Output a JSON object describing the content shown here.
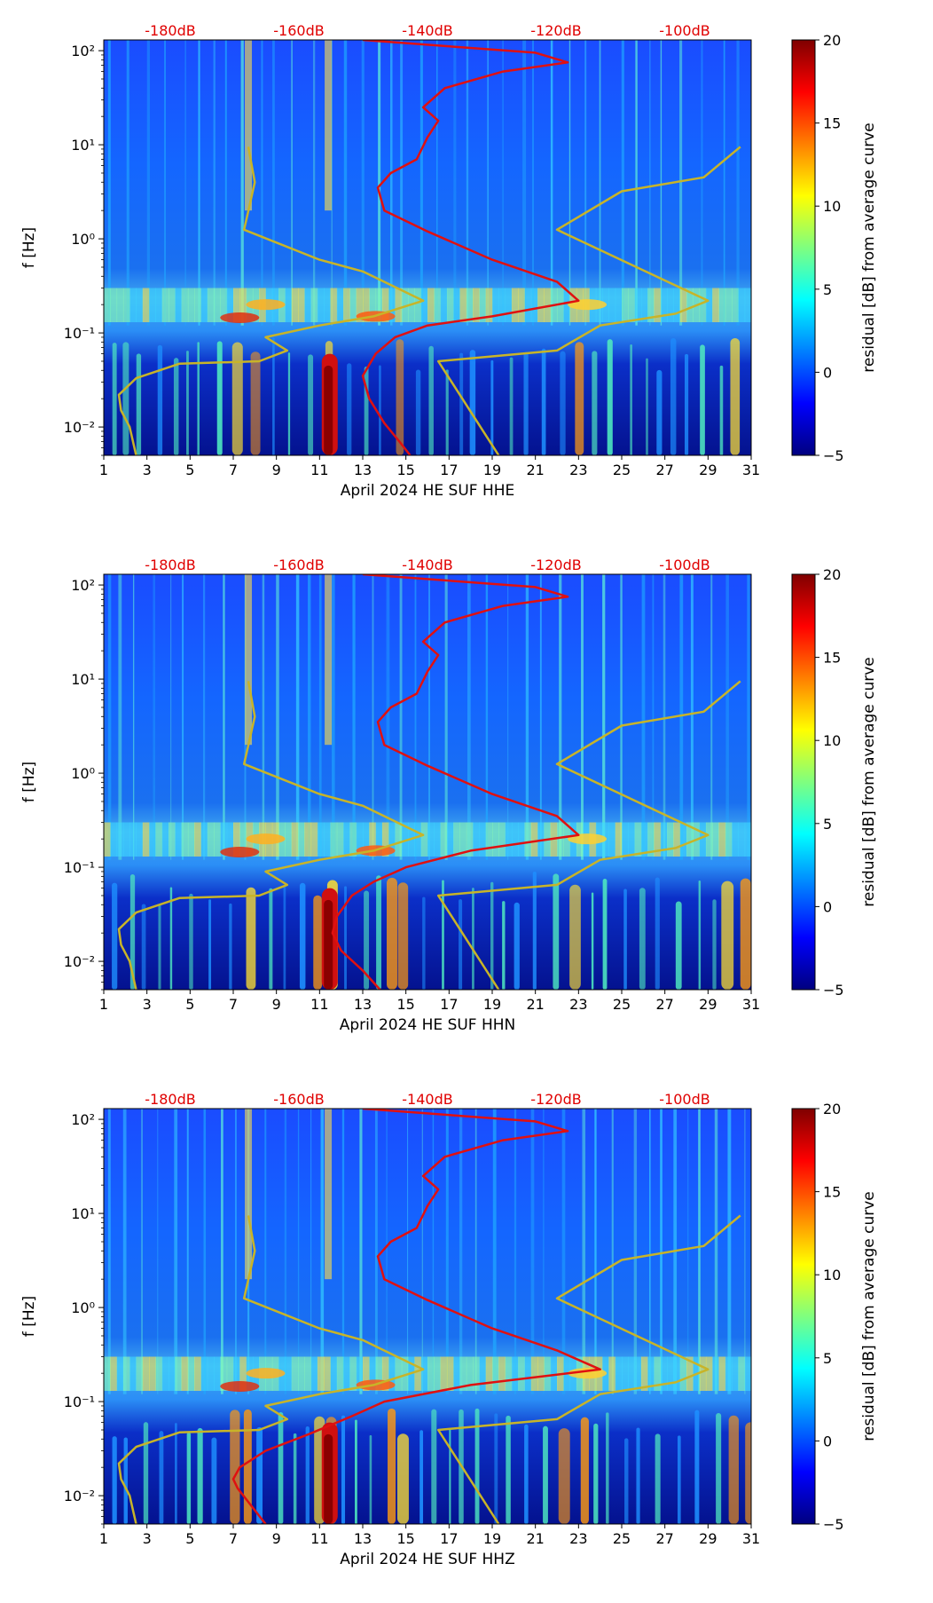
{
  "colors": {
    "peterson_curves": "#c8b428",
    "median_curve": "#e01010",
    "db_label": "#e00000",
    "colormap": [
      "#00007f",
      "#0000ff",
      "#007fff",
      "#00ffff",
      "#7fff7f",
      "#ffff00",
      "#ff7f00",
      "#ff0000",
      "#7f0000"
    ]
  },
  "chart_data": [
    {
      "type": "heatmap",
      "title": "",
      "xlabel": "April 2024 HE SUF  HHE",
      "ylabel": "f [Hz]",
      "x_ticks": [
        1,
        3,
        5,
        7,
        9,
        11,
        13,
        15,
        17,
        19,
        21,
        23,
        25,
        27,
        29,
        31
      ],
      "y_ticks": [
        {
          "value": 0.01,
          "label": "10⁻²"
        },
        {
          "value": 0.1,
          "label": "10⁻¹"
        },
        {
          "value": 1,
          "label": "10⁰"
        },
        {
          "value": 10,
          "label": "10¹"
        },
        {
          "value": 100,
          "label": "10²"
        }
      ],
      "xlim": [
        1,
        31
      ],
      "ylim": [
        0.005,
        130
      ],
      "top_axis_labels": [
        "-180dB",
        "-160dB",
        "-140dB",
        "-120dB",
        "-100dB"
      ],
      "colorbar": {
        "label": "residual [dB] from average curve",
        "range": [
          -5,
          20
        ],
        "ticks": [
          -5,
          0,
          5,
          10,
          15,
          20
        ]
      },
      "nlnm_curve": [
        [
          2.5,
          0.005
        ],
        [
          2.2,
          0.01
        ],
        [
          1.8,
          0.015
        ],
        [
          1.7,
          0.022
        ],
        [
          2.5,
          0.033
        ],
        [
          4.5,
          0.047
        ],
        [
          8.2,
          0.05
        ],
        [
          9.5,
          0.065
        ],
        [
          8.5,
          0.09
        ],
        [
          11,
          0.12
        ],
        [
          13.5,
          0.15
        ],
        [
          15.8,
          0.22
        ],
        [
          13,
          0.45
        ],
        [
          11,
          0.6
        ],
        [
          7.5,
          1.25
        ],
        [
          8,
          4
        ],
        [
          7.7,
          9.5
        ]
      ],
      "nhnm_curve": [
        [
          19.3,
          0.005
        ],
        [
          16.5,
          0.05
        ],
        [
          22,
          0.065
        ],
        [
          24,
          0.12
        ],
        [
          27.5,
          0.16
        ],
        [
          29,
          0.22
        ],
        [
          22,
          1.25
        ],
        [
          25,
          3.2
        ],
        [
          28.8,
          4.5
        ],
        [
          30.5,
          9.5
        ]
      ],
      "median_curve": [
        [
          15.2,
          0.005
        ],
        [
          14.7,
          0.007
        ],
        [
          14,
          0.011
        ],
        [
          13.3,
          0.02
        ],
        [
          13,
          0.035
        ],
        [
          13.6,
          0.06
        ],
        [
          14.5,
          0.09
        ],
        [
          16,
          0.12
        ],
        [
          19,
          0.15
        ],
        [
          23,
          0.22
        ],
        [
          22,
          0.35
        ],
        [
          19,
          0.6
        ],
        [
          16,
          1.2
        ],
        [
          14,
          2
        ],
        [
          13.7,
          3.5
        ],
        [
          14.3,
          5
        ],
        [
          15.5,
          7
        ],
        [
          16,
          12
        ],
        [
          16.5,
          18
        ],
        [
          15.8,
          25
        ],
        [
          16.8,
          40
        ],
        [
          19.5,
          60
        ],
        [
          22.5,
          75
        ],
        [
          21,
          95
        ],
        [
          13,
          130
        ]
      ]
    },
    {
      "type": "heatmap",
      "title": "",
      "xlabel": "April 2024 HE SUF  HHN",
      "ylabel": "f [Hz]",
      "x_ticks": [
        1,
        3,
        5,
        7,
        9,
        11,
        13,
        15,
        17,
        19,
        21,
        23,
        25,
        27,
        29,
        31
      ],
      "y_ticks": [
        {
          "value": 0.01,
          "label": "10⁻²"
        },
        {
          "value": 0.1,
          "label": "10⁻¹"
        },
        {
          "value": 1,
          "label": "10⁰"
        },
        {
          "value": 10,
          "label": "10¹"
        },
        {
          "value": 100,
          "label": "10²"
        }
      ],
      "xlim": [
        1,
        31
      ],
      "ylim": [
        0.005,
        130
      ],
      "top_axis_labels": [
        "-180dB",
        "-160dB",
        "-140dB",
        "-120dB",
        "-100dB"
      ],
      "colorbar": {
        "label": "residual [dB] from average curve",
        "range": [
          -5,
          20
        ],
        "ticks": [
          -5,
          0,
          5,
          10,
          15,
          20
        ]
      },
      "nlnm_curve": [
        [
          2.5,
          0.005
        ],
        [
          2.2,
          0.01
        ],
        [
          1.8,
          0.015
        ],
        [
          1.7,
          0.022
        ],
        [
          2.5,
          0.033
        ],
        [
          4.5,
          0.047
        ],
        [
          8.2,
          0.05
        ],
        [
          9.5,
          0.065
        ],
        [
          8.5,
          0.09
        ],
        [
          11,
          0.12
        ],
        [
          13.5,
          0.15
        ],
        [
          15.8,
          0.22
        ],
        [
          13,
          0.45
        ],
        [
          11,
          0.6
        ],
        [
          7.5,
          1.25
        ],
        [
          8,
          4
        ],
        [
          7.7,
          9.5
        ]
      ],
      "nhnm_curve": [
        [
          19.3,
          0.005
        ],
        [
          16.5,
          0.05
        ],
        [
          22,
          0.065
        ],
        [
          24,
          0.12
        ],
        [
          27.5,
          0.16
        ],
        [
          29,
          0.22
        ],
        [
          22,
          1.25
        ],
        [
          25,
          3.2
        ],
        [
          28.8,
          4.5
        ],
        [
          30.5,
          9.5
        ]
      ],
      "median_curve": [
        [
          13.8,
          0.005
        ],
        [
          13,
          0.008
        ],
        [
          12,
          0.013
        ],
        [
          11.6,
          0.02
        ],
        [
          11.8,
          0.03
        ],
        [
          12.5,
          0.05
        ],
        [
          13.5,
          0.07
        ],
        [
          15,
          0.1
        ],
        [
          18,
          0.15
        ],
        [
          23,
          0.22
        ],
        [
          22,
          0.35
        ],
        [
          19,
          0.6
        ],
        [
          16,
          1.2
        ],
        [
          14,
          2
        ],
        [
          13.7,
          3.5
        ],
        [
          14.3,
          5
        ],
        [
          15.5,
          7
        ],
        [
          16,
          12
        ],
        [
          16.5,
          18
        ],
        [
          15.8,
          25
        ],
        [
          16.8,
          40
        ],
        [
          19.5,
          60
        ],
        [
          22.5,
          75
        ],
        [
          21,
          95
        ],
        [
          13,
          130
        ]
      ]
    },
    {
      "type": "heatmap",
      "title": "",
      "xlabel": "April 2024 HE SUF  HHZ",
      "ylabel": "f [Hz]",
      "x_ticks": [
        1,
        3,
        5,
        7,
        9,
        11,
        13,
        15,
        17,
        19,
        21,
        23,
        25,
        27,
        29,
        31
      ],
      "y_ticks": [
        {
          "value": 0.01,
          "label": "10⁻²"
        },
        {
          "value": 0.1,
          "label": "10⁻¹"
        },
        {
          "value": 1,
          "label": "10⁰"
        },
        {
          "value": 10,
          "label": "10¹"
        },
        {
          "value": 100,
          "label": "10²"
        }
      ],
      "xlim": [
        1,
        31
      ],
      "ylim": [
        0.005,
        130
      ],
      "top_axis_labels": [
        "-180dB",
        "-160dB",
        "-140dB",
        "-120dB",
        "-100dB"
      ],
      "colorbar": {
        "label": "residual [dB] from average curve",
        "range": [
          -5,
          20
        ],
        "ticks": [
          -5,
          0,
          5,
          10,
          15,
          20
        ]
      },
      "nlnm_curve": [
        [
          2.5,
          0.005
        ],
        [
          2.2,
          0.01
        ],
        [
          1.8,
          0.015
        ],
        [
          1.7,
          0.022
        ],
        [
          2.5,
          0.033
        ],
        [
          4.5,
          0.047
        ],
        [
          8.2,
          0.05
        ],
        [
          9.5,
          0.065
        ],
        [
          8.5,
          0.09
        ],
        [
          11,
          0.12
        ],
        [
          13.5,
          0.15
        ],
        [
          15.8,
          0.22
        ],
        [
          13,
          0.45
        ],
        [
          11,
          0.6
        ],
        [
          7.5,
          1.25
        ],
        [
          8,
          4
        ],
        [
          7.7,
          9.5
        ]
      ],
      "nhnm_curve": [
        [
          19.3,
          0.005
        ],
        [
          16.5,
          0.05
        ],
        [
          22,
          0.065
        ],
        [
          24,
          0.12
        ],
        [
          27.5,
          0.16
        ],
        [
          29,
          0.22
        ],
        [
          22,
          1.25
        ],
        [
          25,
          3.2
        ],
        [
          28.8,
          4.5
        ],
        [
          30.5,
          9.5
        ]
      ],
      "median_curve": [
        [
          8.5,
          0.005
        ],
        [
          7.8,
          0.008
        ],
        [
          7.2,
          0.012
        ],
        [
          7,
          0.015
        ],
        [
          7.3,
          0.02
        ],
        [
          8.5,
          0.03
        ],
        [
          10.5,
          0.045
        ],
        [
          12.5,
          0.07
        ],
        [
          14,
          0.1
        ],
        [
          18,
          0.15
        ],
        [
          24,
          0.22
        ],
        [
          22,
          0.35
        ],
        [
          19,
          0.6
        ],
        [
          16,
          1.2
        ],
        [
          14,
          2
        ],
        [
          13.7,
          3.5
        ],
        [
          14.3,
          5
        ],
        [
          15.5,
          7
        ],
        [
          16,
          12
        ],
        [
          16.5,
          18
        ],
        [
          15.8,
          25
        ],
        [
          16.8,
          40
        ],
        [
          19.5,
          60
        ],
        [
          22.5,
          75
        ],
        [
          21,
          95
        ],
        [
          13,
          130
        ]
      ]
    }
  ]
}
